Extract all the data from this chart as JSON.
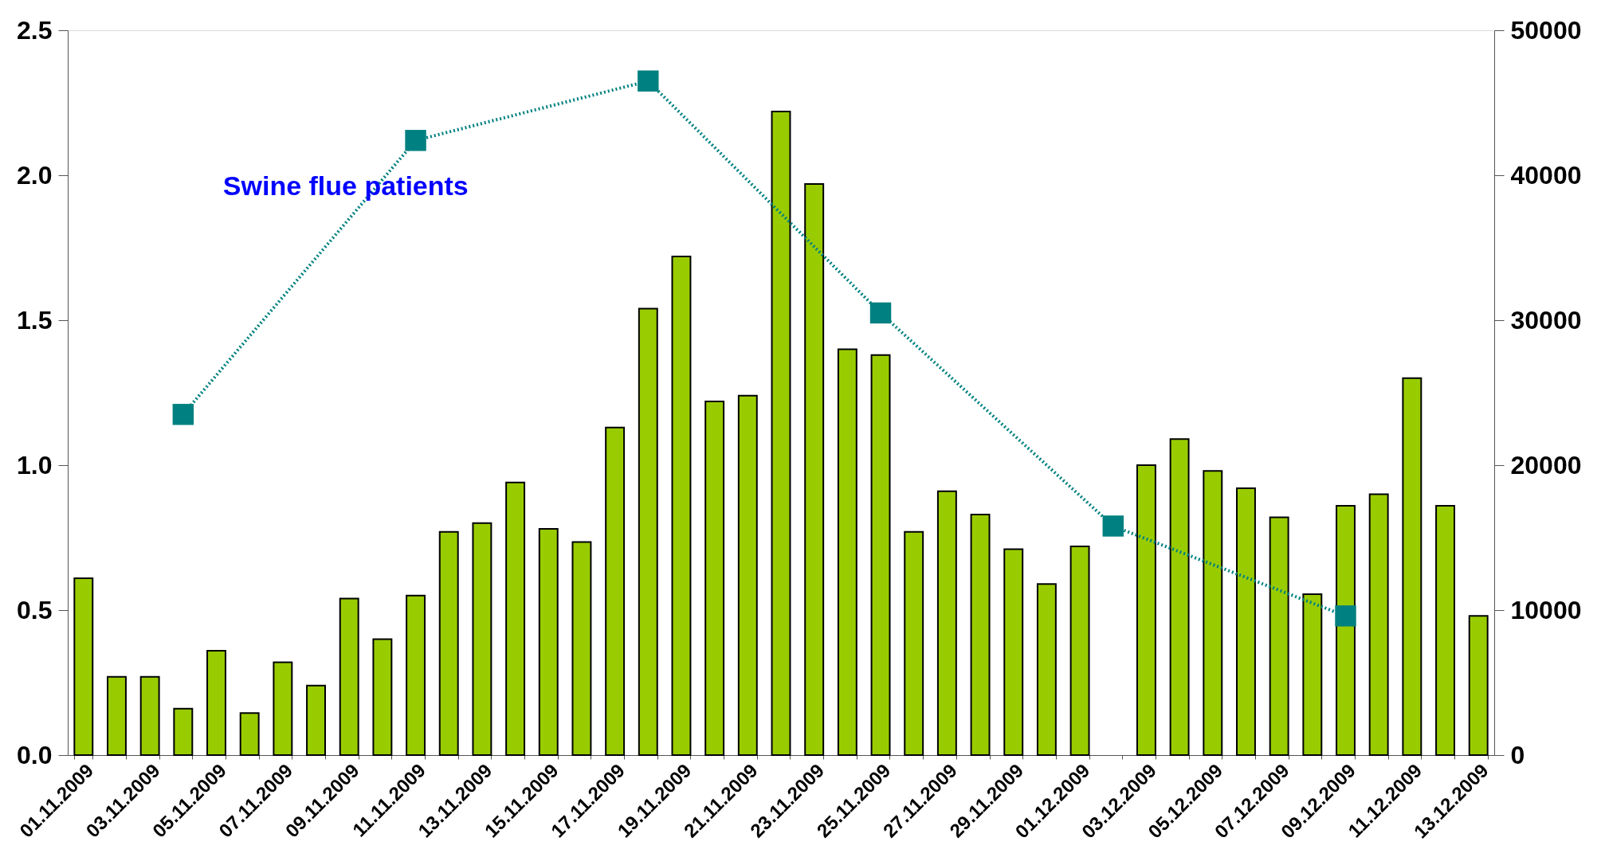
{
  "chart_data": {
    "type": "bar",
    "categories": [
      "01.11.2009",
      null,
      "03.11.2009",
      null,
      "05.11.2009",
      null,
      "07.11.2009",
      null,
      "09.11.2009",
      null,
      "11.11.2009",
      null,
      "13.11.2009",
      null,
      "15.11.2009",
      null,
      "17.11.2009",
      null,
      "19.11.2009",
      null,
      "21.11.2009",
      null,
      "23.11.2009",
      null,
      "25.11.2009",
      null,
      "27.11.2009",
      null,
      "29.11.2009",
      null,
      "01.12.2009",
      null,
      "03.12.2009",
      null,
      "05.12.2009",
      null,
      "07.12.2009",
      null,
      "09.12.2009",
      null,
      "11.12.2009",
      null,
      "13.12.2009"
    ],
    "series": [
      {
        "color": "#99cc00",
        "values": [
          0.61,
          0.27,
          0.27,
          0.16,
          0.36,
          0.145,
          0.32,
          0.24,
          0.54,
          0.4,
          0.55,
          0.77,
          0.8,
          0.94,
          0.78,
          0.735,
          1.13,
          1.54,
          1.72,
          1.22,
          1.24,
          2.22,
          1.97,
          1.4,
          1.38,
          0.77,
          0.91,
          0.83,
          0.71,
          0.59,
          0.72,
          null,
          1.0,
          1.09,
          0.98,
          0.92,
          0.82,
          0.555,
          0.86,
          0.9,
          1.3,
          0.86,
          0.48
        ]
      },
      {
        "type": "line",
        "axis": "y2",
        "name": "Swine flue patients",
        "color": "#008080",
        "marker": "square",
        "line_style": "dotted",
        "values": [
          null,
          null,
          null,
          23500,
          null,
          null,
          null,
          null,
          null,
          null,
          42400,
          null,
          null,
          null,
          null,
          null,
          null,
          46500,
          null,
          null,
          null,
          null,
          null,
          null,
          30500,
          null,
          null,
          null,
          null,
          null,
          null,
          15800,
          null,
          null,
          null,
          null,
          null,
          null,
          9600,
          null,
          null,
          null,
          null
        ]
      }
    ],
    "ylim": [
      0,
      2.5
    ],
    "yticks": [
      {
        "value": 0,
        "label": "0.0"
      },
      {
        "value": 0.5,
        "label": "0.5"
      },
      {
        "value": 1,
        "label": "1.0"
      },
      {
        "value": 1.5,
        "label": "1.5"
      },
      {
        "value": 2,
        "label": "2.0"
      },
      {
        "value": 2.5,
        "label": "2.5"
      }
    ],
    "y2lim": [
      0,
      50000
    ],
    "y2ticks": [
      0,
      10000,
      20000,
      30000,
      40000,
      50000
    ],
    "grid": false
  }
}
